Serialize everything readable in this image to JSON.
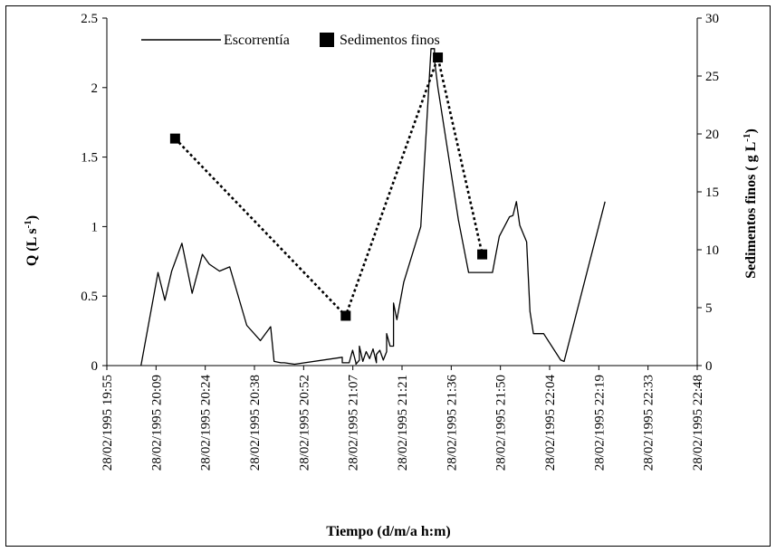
{
  "chart_data": {
    "type": "line",
    "title": "",
    "xlabel": "Tiempo (d/m/a h:m)",
    "ylabel_left": "Q (L s -1)",
    "ylabel_right": "Sedimentos finos ( g L-1)",
    "ylim_left": [
      0,
      2.5
    ],
    "ylim_right": [
      0,
      30
    ],
    "legend_position": "top",
    "grid": false,
    "x_tick_labels": [
      "28/02/1995 19:55",
      "28/02/1995 20:09",
      "28/02/1995 20:24",
      "28/02/1995 20:38",
      "28/02/1995 20:52",
      "28/02/1995 21:07",
      "28/02/1995 21:21",
      "28/02/1995 21:36",
      "28/02/1995 21:50",
      "28/02/1995 22:04",
      "28/02/1995 22:19",
      "28/02/1995 22:33",
      "28/02/1995 22:48"
    ],
    "y_left_ticks": [
      "0",
      "0.5",
      "1",
      "1.5",
      "2",
      "2.5"
    ],
    "y_right_ticks": [
      "0",
      "5",
      "10",
      "15",
      "20",
      "25",
      "30"
    ],
    "series": [
      {
        "name": "Escorrentía",
        "axis": "left",
        "style": "solid-line",
        "x": [
          "20:05",
          "20:10",
          "20:12",
          "20:14",
          "20:17",
          "20:20",
          "20:23",
          "20:25",
          "20:28",
          "20:31",
          "20:36",
          "20:40",
          "20:43",
          "20:44",
          "20:46",
          "20:47",
          "20:50",
          "21:04",
          "21:04",
          "21:05",
          "21:06",
          "21:07",
          "21:08",
          "21:08",
          "21:09",
          "21:09",
          "21:10",
          "21:11",
          "21:12",
          "21:13",
          "21:14",
          "21:14",
          "21:15",
          "21:16",
          "21:17",
          "21:17",
          "21:18",
          "21:19",
          "21:19",
          "21:20",
          "21:22",
          "21:27",
          "21:30",
          "21:31",
          "21:31",
          "21:32",
          "21:38",
          "21:41",
          "21:45",
          "21:48",
          "21:49",
          "21:50",
          "21:53",
          "21:54",
          "21:55",
          "21:56",
          "21:58",
          "21:59",
          "22:00",
          "22:03",
          "22:08",
          "22:09",
          "22:21"
        ],
        "values": [
          0,
          0.67,
          0.47,
          0.68,
          0.88,
          0.52,
          0.8,
          0.73,
          0.68,
          0.71,
          0.29,
          0.18,
          0.28,
          0.03,
          0.02,
          0.02,
          0.01,
          0.06,
          0.02,
          0.02,
          0.02,
          0.11,
          0.02,
          0.01,
          0.04,
          0.14,
          0.03,
          0.1,
          0.05,
          0.12,
          0.02,
          0.08,
          0.11,
          0.04,
          0.1,
          0.23,
          0.14,
          0.14,
          0.45,
          0.33,
          0.6,
          1.0,
          2.28,
          2.28,
          2.2,
          2.0,
          1.05,
          0.67,
          0.67,
          0.67,
          0.8,
          0.93,
          1.07,
          1.08,
          1.18,
          1.01,
          0.89,
          0.39,
          0.23,
          0.23,
          0.04,
          0.03,
          1.18
        ]
      },
      {
        "name": "Sedimentos finos",
        "axis": "right",
        "style": "dotted-line-square-markers",
        "x": [
          "20:15",
          "21:05",
          "21:32",
          "21:45"
        ],
        "values": [
          19.6,
          4.3,
          26.6,
          9.6
        ]
      }
    ]
  }
}
